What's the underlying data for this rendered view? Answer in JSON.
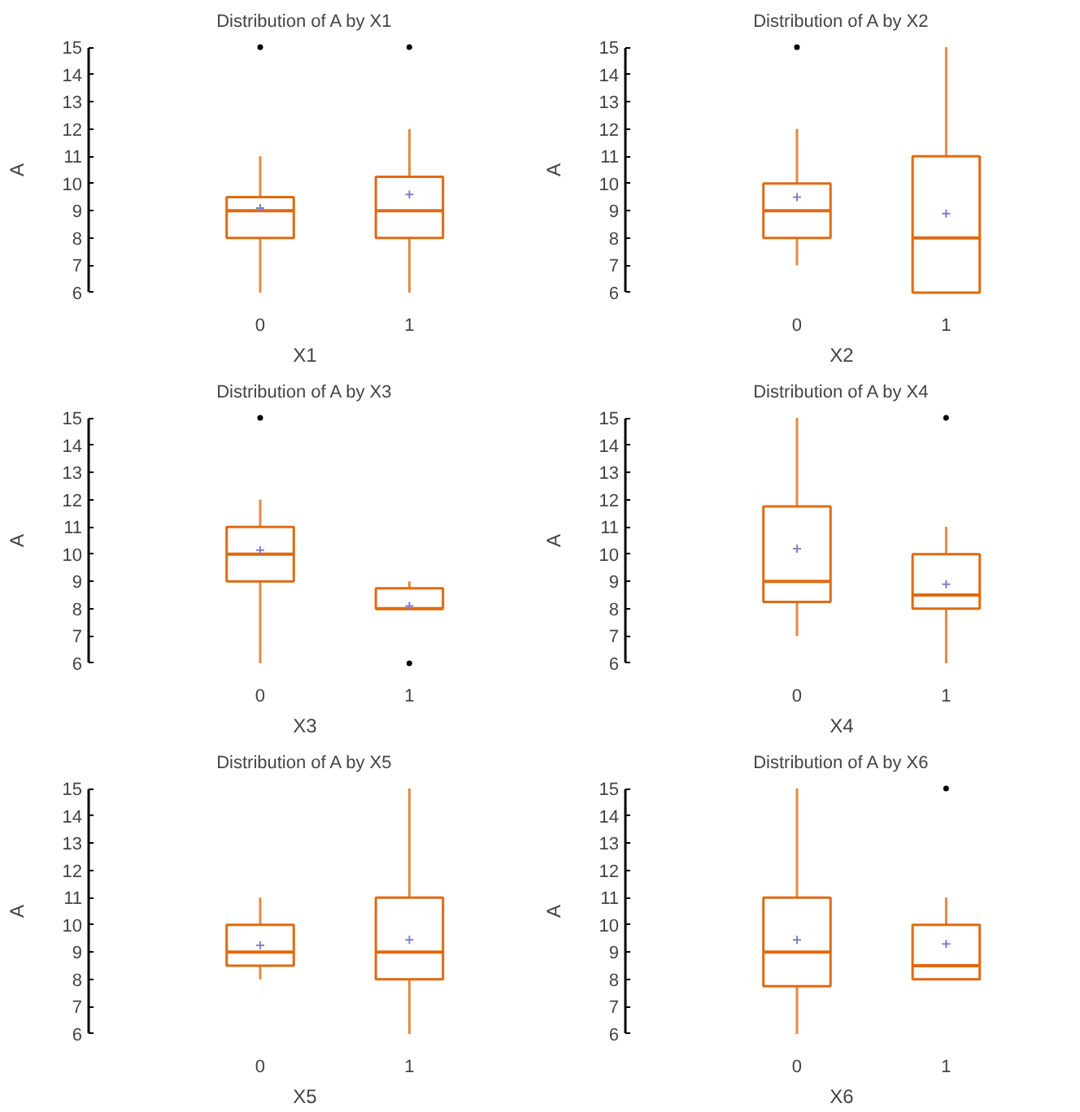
{
  "chart_data": [
    {
      "type": "box",
      "title": "Distribution of A by X1",
      "xlabel": "X1",
      "ylabel": "A",
      "categories": [
        "0",
        "1"
      ],
      "ylim": [
        6,
        15
      ],
      "yticks": [
        6,
        7,
        8,
        9,
        10,
        11,
        12,
        13,
        14,
        15
      ],
      "series": [
        {
          "color": "#e06a10",
          "boxes": [
            {
              "low": 6,
              "q1": 8,
              "median": 9,
              "q3": 9.5,
              "high": 11,
              "mean": 9.1,
              "outliers": [
                15
              ]
            },
            {
              "low": 6,
              "q1": 8,
              "median": 9,
              "q3": 10.25,
              "high": 12,
              "mean": 9.6,
              "outliers": [
                15
              ]
            }
          ]
        }
      ]
    },
    {
      "type": "box",
      "title": "Distribution of A by X2",
      "xlabel": "X2",
      "ylabel": "A",
      "categories": [
        "0",
        "1"
      ],
      "ylim": [
        6,
        15
      ],
      "yticks": [
        6,
        7,
        8,
        9,
        10,
        11,
        12,
        13,
        14,
        15
      ],
      "series": [
        {
          "color": "#e06a10",
          "boxes": [
            {
              "low": 7,
              "q1": 8,
              "median": 9,
              "q3": 10,
              "high": 12,
              "mean": 9.5,
              "outliers": [
                15
              ]
            },
            {
              "low": 6,
              "q1": 6,
              "median": 8,
              "q3": 11,
              "high": 15,
              "mean": 8.9
            }
          ]
        }
      ]
    },
    {
      "type": "box",
      "title": "Distribution of A by X3",
      "xlabel": "X3",
      "ylabel": "A",
      "categories": [
        "0",
        "1"
      ],
      "ylim": [
        6,
        15
      ],
      "yticks": [
        6,
        7,
        8,
        9,
        10,
        11,
        12,
        13,
        14,
        15
      ],
      "series": [
        {
          "color": "#e06a10",
          "boxes": [
            {
              "low": 6,
              "q1": 9,
              "median": 10,
              "q3": 11,
              "high": 12,
              "mean": 10.15,
              "outliers": [
                15
              ]
            },
            {
              "low": 8,
              "q1": 8,
              "median": 8,
              "q3": 8.75,
              "high": 9,
              "mean": 8.1,
              "outliers": [
                6
              ]
            }
          ]
        }
      ]
    },
    {
      "type": "box",
      "title": "Distribution of A by X4",
      "xlabel": "X4",
      "ylabel": "A",
      "categories": [
        "0",
        "1"
      ],
      "ylim": [
        6,
        15
      ],
      "yticks": [
        6,
        7,
        8,
        9,
        10,
        11,
        12,
        13,
        14,
        15
      ],
      "series": [
        {
          "color": "#e06a10",
          "boxes": [
            {
              "low": 7,
              "q1": 8.25,
              "median": 9,
              "q3": 11.75,
              "high": 15,
              "mean": 10.2
            },
            {
              "low": 6,
              "q1": 8,
              "median": 8.5,
              "q3": 10,
              "high": 11,
              "mean": 8.9,
              "outliers": [
                15
              ]
            }
          ]
        }
      ]
    },
    {
      "type": "box",
      "title": "Distribution of A by X5",
      "xlabel": "X5",
      "ylabel": "A",
      "categories": [
        "0",
        "1"
      ],
      "ylim": [
        6,
        15
      ],
      "yticks": [
        6,
        7,
        8,
        9,
        10,
        11,
        12,
        13,
        14,
        15
      ],
      "series": [
        {
          "color": "#e06a10",
          "boxes": [
            {
              "low": 8,
              "q1": 8.5,
              "median": 9,
              "q3": 10,
              "high": 11,
              "mean": 9.25
            },
            {
              "low": 6,
              "q1": 8,
              "median": 9,
              "q3": 11,
              "high": 15,
              "mean": 9.45
            }
          ]
        }
      ]
    },
    {
      "type": "box",
      "title": "Distribution of A by X6",
      "xlabel": "X6",
      "ylabel": "A",
      "categories": [
        "0",
        "1"
      ],
      "ylim": [
        6,
        15
      ],
      "yticks": [
        6,
        7,
        8,
        9,
        10,
        11,
        12,
        13,
        14,
        15
      ],
      "series": [
        {
          "color": "#e06a10",
          "boxes": [
            {
              "low": 6,
              "q1": 7.75,
              "median": 9,
              "q3": 11,
              "high": 15,
              "mean": 9.45
            },
            {
              "low": 8,
              "q1": 8,
              "median": 8.5,
              "q3": 10,
              "high": 11,
              "mean": 9.3,
              "outliers": [
                15
              ]
            }
          ]
        }
      ]
    }
  ]
}
